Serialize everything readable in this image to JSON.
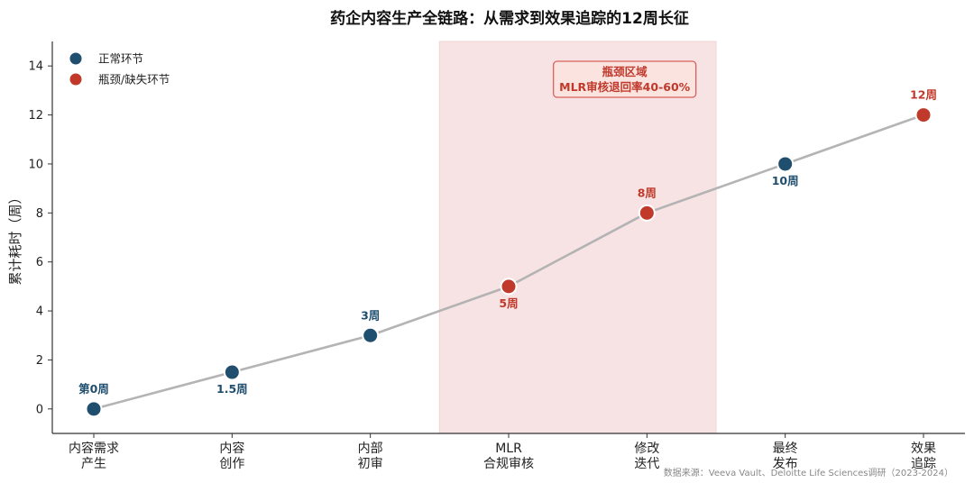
{
  "chart_data": {
    "type": "line",
    "title": "药企内容生产全链路：从需求到效果追踪的12周长征",
    "ylabel": "累计耗时（周）",
    "xlabel": "",
    "ylim": [
      -1,
      15
    ],
    "yticks": [
      0,
      2,
      4,
      6,
      8,
      10,
      12,
      14
    ],
    "grid": false,
    "legend_position": "top-left",
    "categories": [
      [
        "内容需求",
        "产生"
      ],
      [
        "内容",
        "创作"
      ],
      [
        "内部",
        "初审"
      ],
      [
        "MLR",
        "合规审核"
      ],
      [
        "修改",
        "迭代"
      ],
      [
        "最终",
        "发布"
      ],
      [
        "效果",
        "追踪"
      ]
    ],
    "points": [
      {
        "value": 0,
        "label": "第0周",
        "type": "normal",
        "label_pos": "above"
      },
      {
        "value": 1.5,
        "label": "1.5周",
        "type": "normal",
        "label_pos": "below"
      },
      {
        "value": 3,
        "label": "3周",
        "type": "normal",
        "label_pos": "above"
      },
      {
        "value": 5,
        "label": "5周",
        "type": "bottleneck",
        "label_pos": "below"
      },
      {
        "value": 8,
        "label": "8周",
        "type": "bottleneck",
        "label_pos": "above"
      },
      {
        "value": 10,
        "label": "10周",
        "type": "normal",
        "label_pos": "below"
      },
      {
        "value": 12,
        "label": "12周",
        "type": "bottleneck",
        "label_pos": "above"
      }
    ],
    "legend": [
      {
        "name": "正常环节",
        "type": "normal"
      },
      {
        "name": "瓶颈/缺失环节",
        "type": "bottleneck"
      }
    ],
    "bottleneck_region": {
      "x_from": 2.5,
      "x_to": 4.5,
      "label_lines": [
        "瓶颈区域",
        "MLR审核退回率40-60%"
      ]
    },
    "source": "数据来源：Veeva Vault、Deloitte Life Sciences调研（2023-2024）"
  },
  "colors": {
    "normal": "#1f4e6e",
    "bottleneck": "#c0392b",
    "line": "#b0b0b0",
    "region_fill": "#f5dada",
    "region_stroke": "#edc6c6",
    "annot_fill": "#fbe3e0",
    "annot_stroke": "#d9625a",
    "axis": "#333333"
  }
}
